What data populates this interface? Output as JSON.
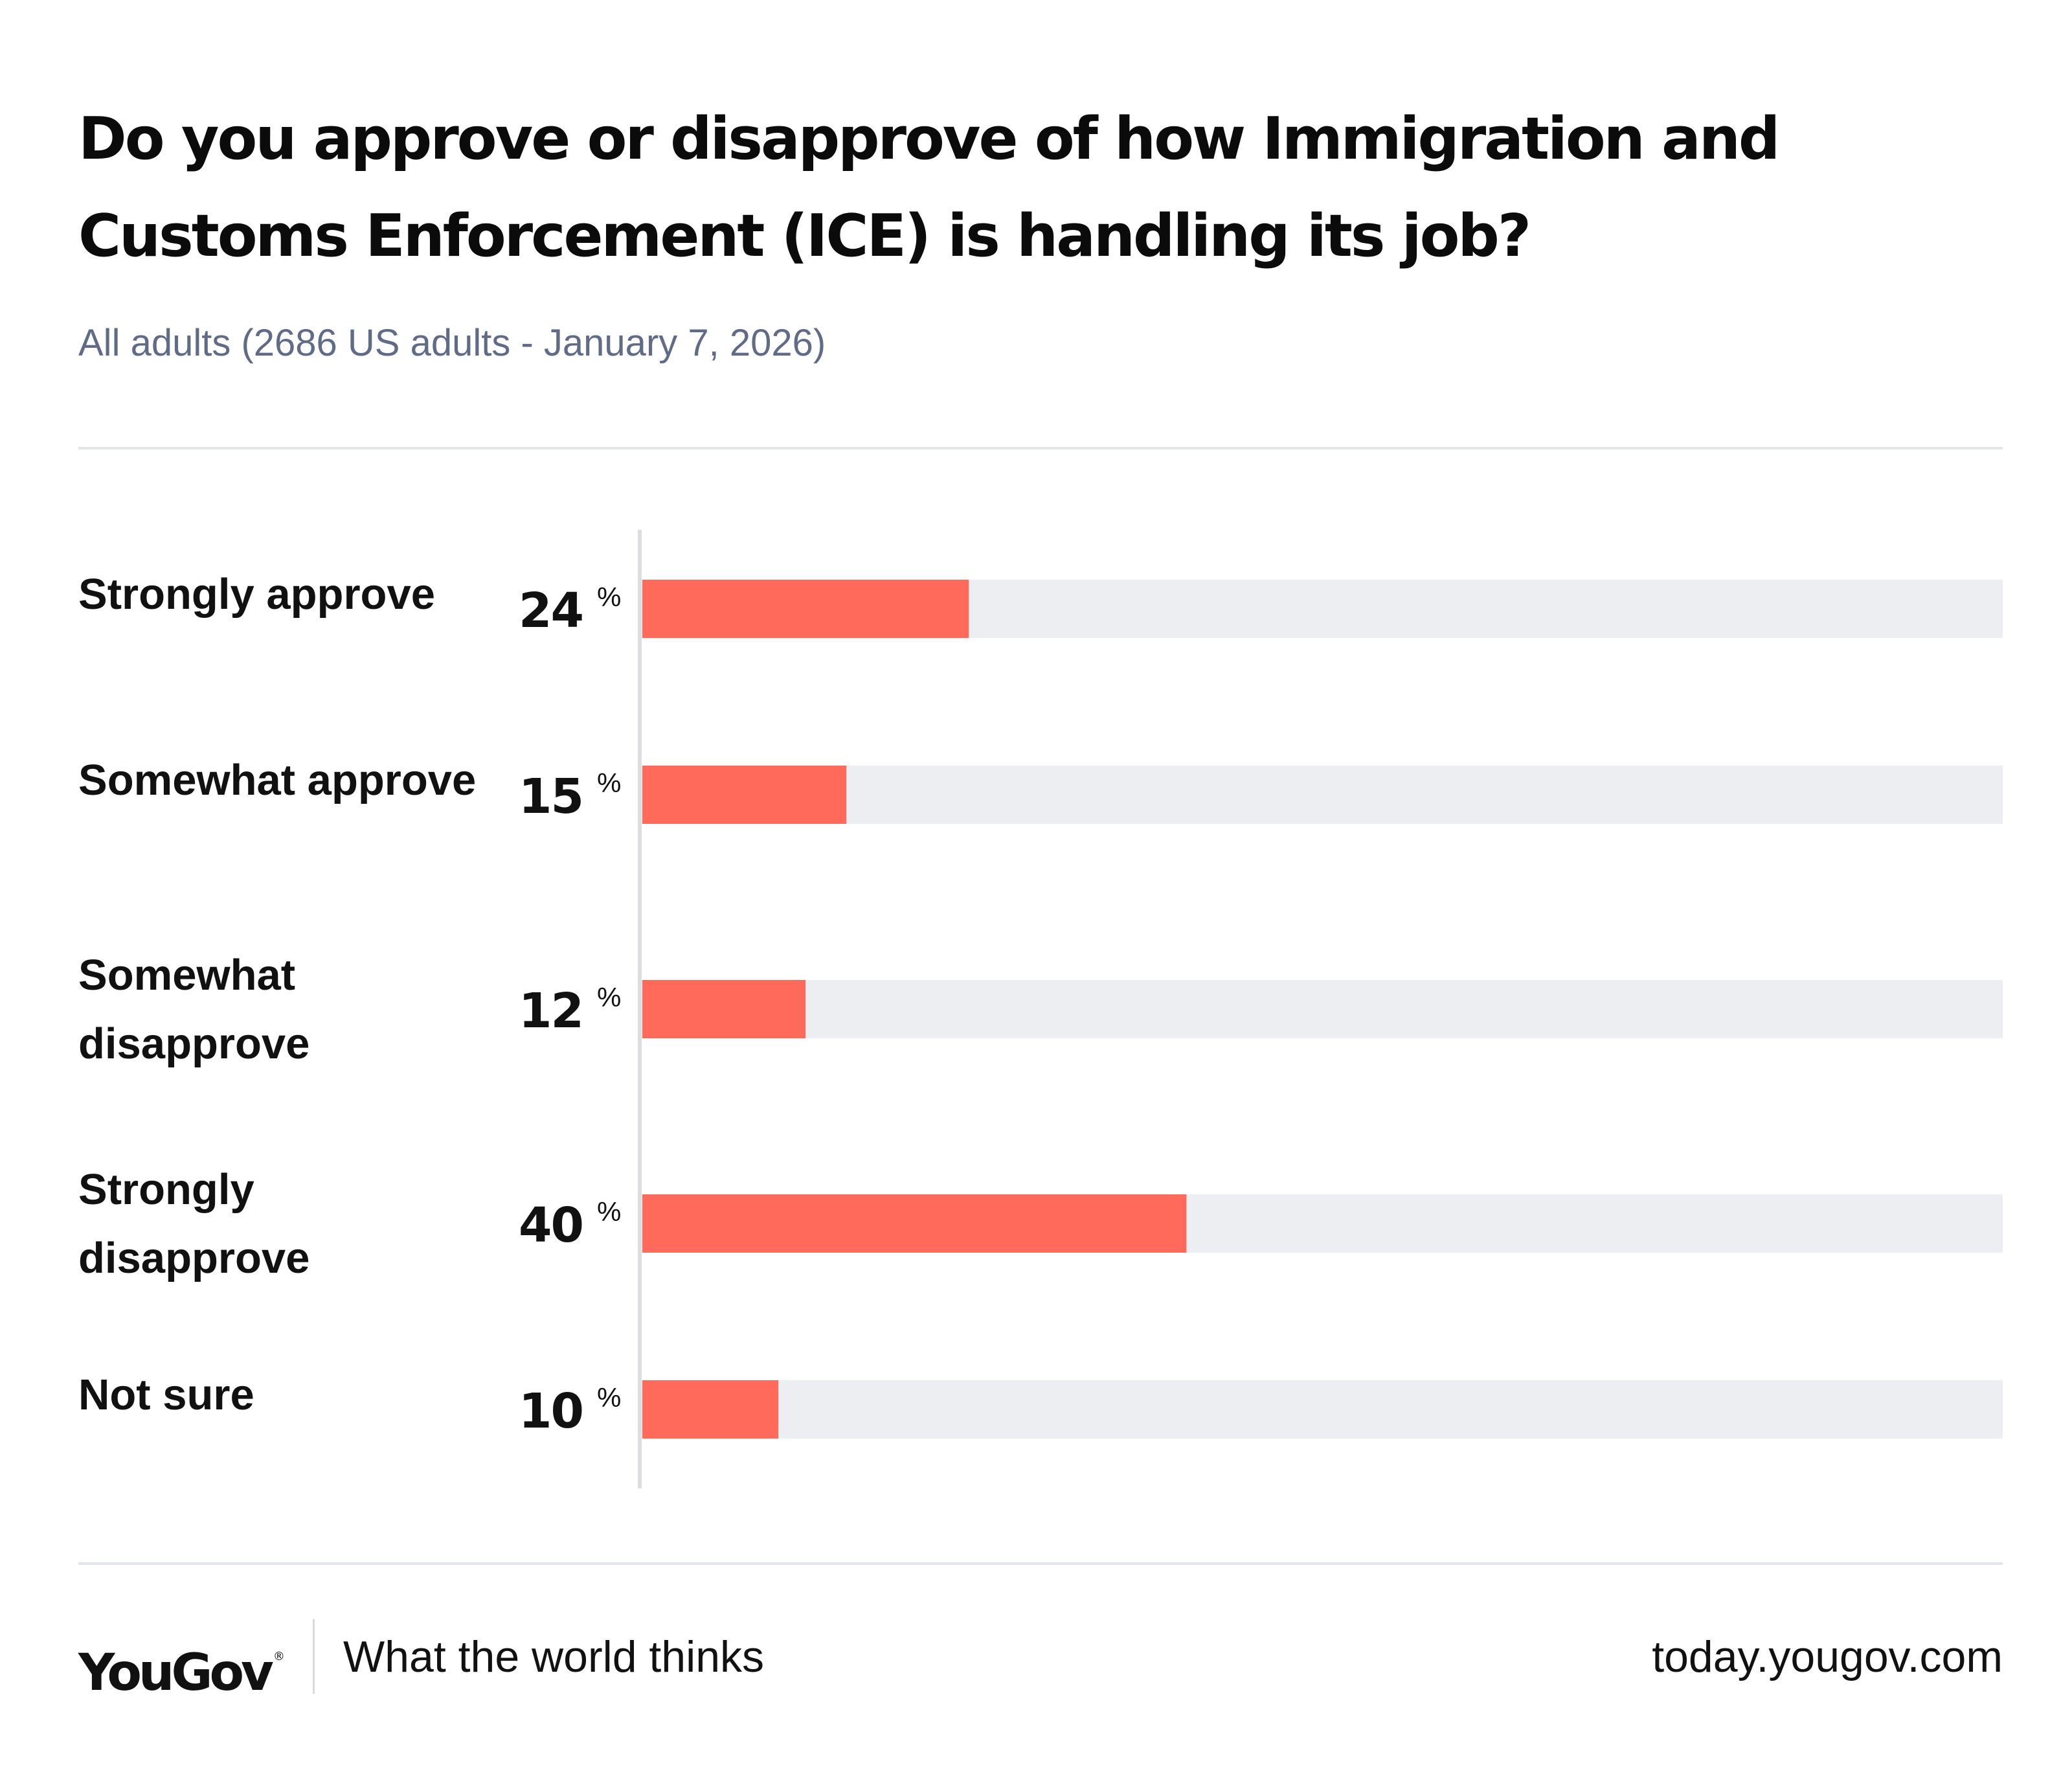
{
  "header": {
    "title": "Do you approve or disapprove of how Immigration and Customs Enforcement (ICE) is handling its job?",
    "subtitle": "All adults (2686 US adults - January 7, 2026)"
  },
  "colors": {
    "bar": "#ff6a5a",
    "track": "#edeef2",
    "axis": "#dcdde3",
    "subtitle": "#5f6b87"
  },
  "chart_data": {
    "type": "bar",
    "orientation": "horizontal",
    "categories": [
      "Strongly approve",
      "Somewhat approve",
      "Somewhat disapprove",
      "Strongly disapprove",
      "Not sure"
    ],
    "values": [
      24,
      15,
      12,
      40,
      10
    ],
    "value_suffix": "%",
    "xlim": [
      0,
      100
    ],
    "title": "Do you approve or disapprove of how Immigration and Customs Enforcement (ICE) is handling its job?",
    "subtitle": "All adults (2686 US adults - January 7, 2026)",
    "legend": "none",
    "grid": false
  },
  "footer": {
    "brand": "YouGov",
    "brand_mark": "®",
    "tagline": "What the world thinks",
    "url": "today.yougov.com"
  }
}
